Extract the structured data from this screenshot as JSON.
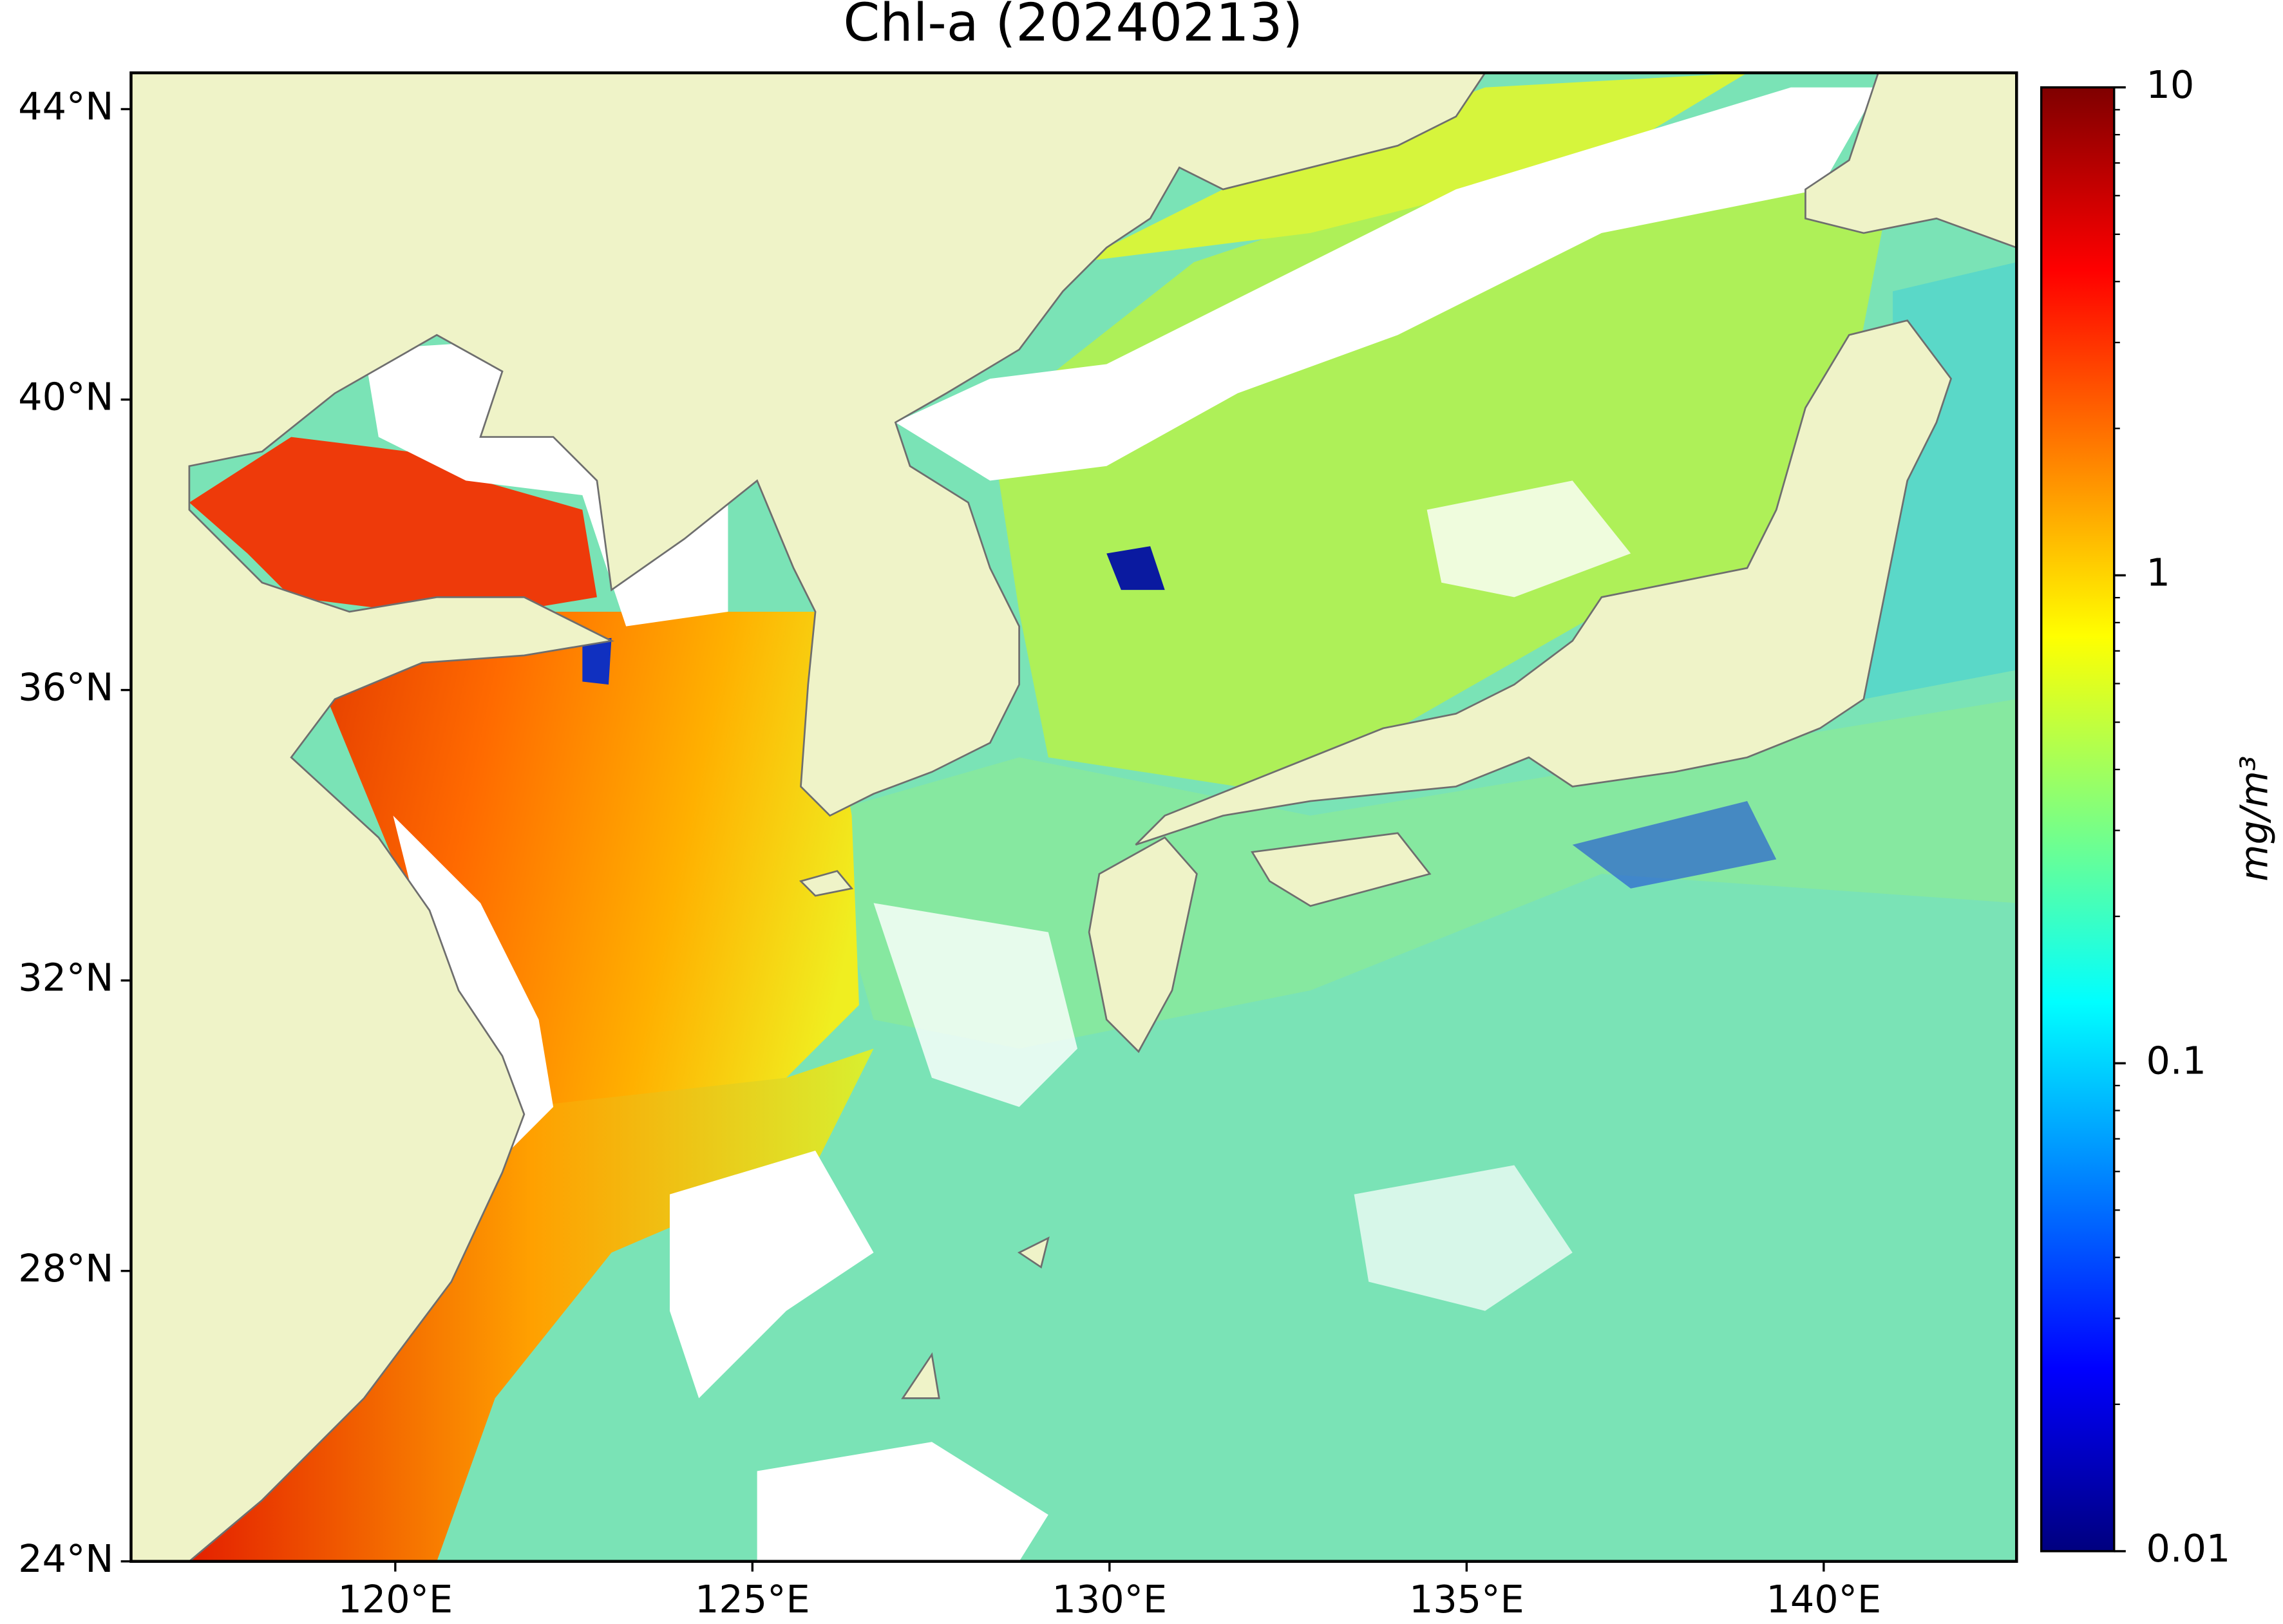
{
  "chart_data": {
    "type": "map",
    "title": "Chl-a (20240213)",
    "xlim": [
      116.3,
      142.7
    ],
    "ylim": [
      24,
      44.5
    ],
    "xticks": [
      {
        "value": 120,
        "label": "120°E"
      },
      {
        "value": 125,
        "label": "125°E"
      },
      {
        "value": 130,
        "label": "130°E"
      },
      {
        "value": 135,
        "label": "135°E"
      },
      {
        "value": 140,
        "label": "140°E"
      }
    ],
    "yticks": [
      {
        "value": 24,
        "label": "24°N"
      },
      {
        "value": 28,
        "label": "28°N"
      },
      {
        "value": 32,
        "label": "32°N"
      },
      {
        "value": 36,
        "label": "36°N"
      },
      {
        "value": 40,
        "label": "40°N"
      },
      {
        "value": 44,
        "label": "44°N"
      }
    ],
    "land_color": "#eff3c8",
    "colorbar": {
      "label": "mg/m³",
      "clim": [
        0.01,
        10
      ],
      "log": true,
      "ticks": [
        0.01,
        0.1,
        1,
        10
      ],
      "minor_ticks": [
        0.02,
        0.03,
        0.04,
        0.05,
        0.06,
        0.07,
        0.08,
        0.09,
        0.2,
        0.3,
        0.4,
        0.5,
        0.6,
        0.7,
        0.8,
        0.9,
        2,
        3,
        4,
        5,
        6,
        7,
        8,
        9
      ],
      "colormap": [
        "#00007f",
        "#0000ff",
        "#007fff",
        "#00ffff",
        "#7fff7f",
        "#ffff00",
        "#ff7f00",
        "#ff0000",
        "#7f0000"
      ]
    }
  }
}
